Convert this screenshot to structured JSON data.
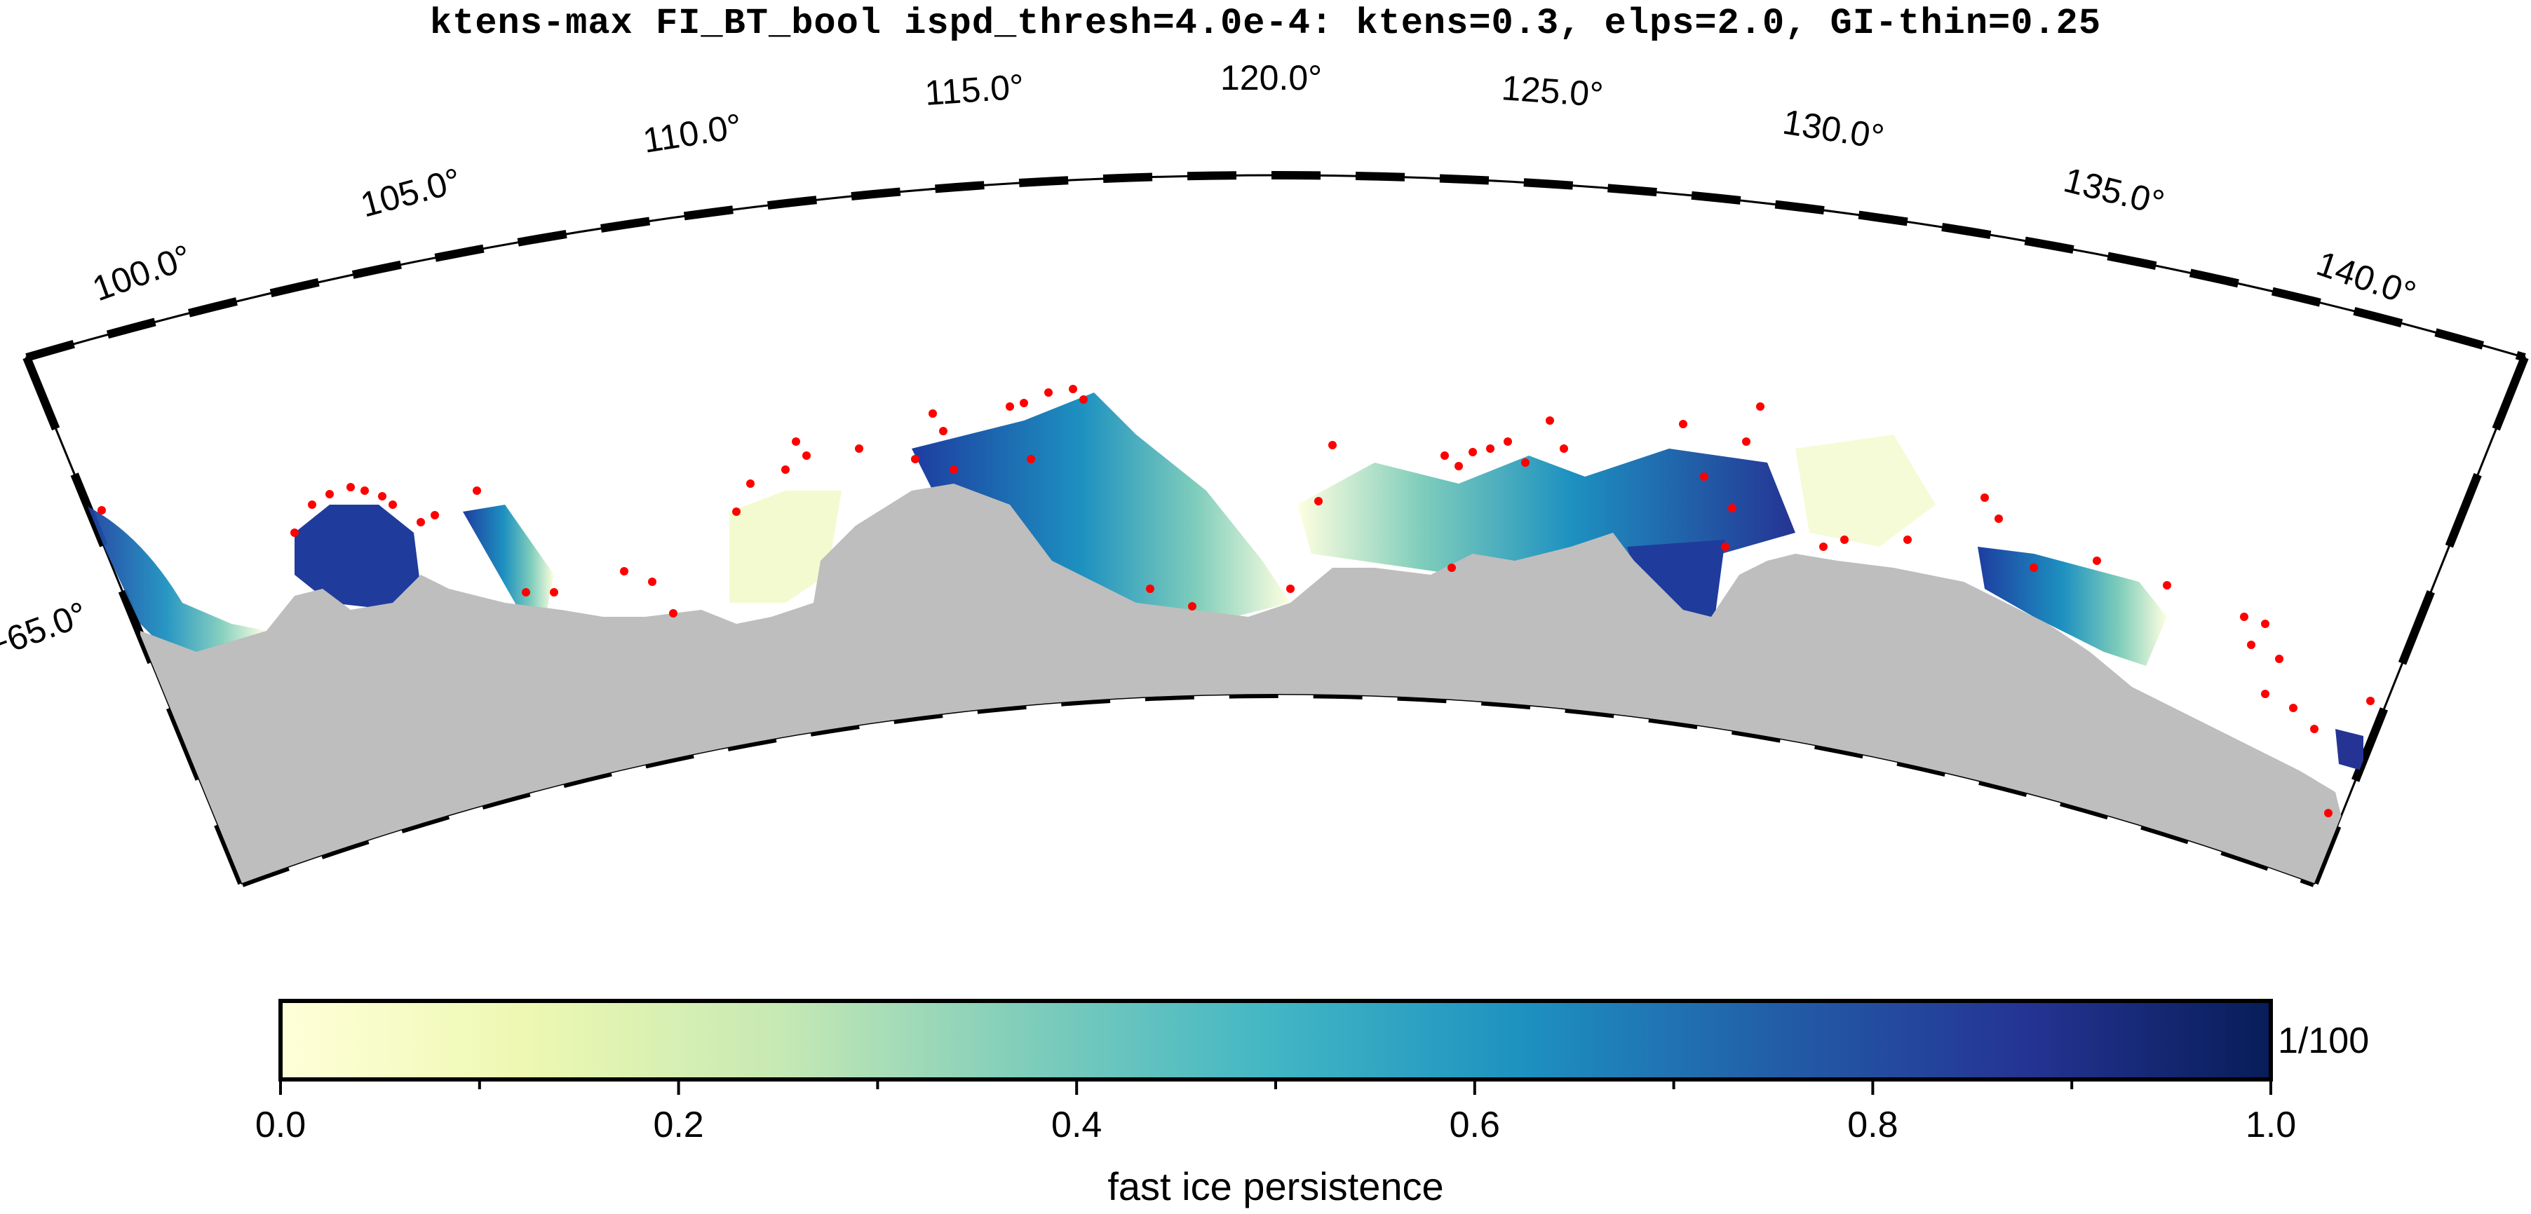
{
  "title": "ktens-max FI_BT_bool ispd_thresh=4.0e-4: ktens=0.3, elps=2.0, GI-thin=0.25",
  "map": {
    "projection": "polar sector (fan)",
    "longitude_labels": [
      "100.0°",
      "105.0°",
      "110.0°",
      "115.0°",
      "120.0°",
      "125.0°",
      "130.0°",
      "135.0°",
      "140.0°"
    ],
    "latitude_labels": [
      "−65.0°"
    ],
    "land_color": "#bebebe",
    "marker_color": "#ff0000",
    "marker_label": "grounded iceberg / point markers (red dots)"
  },
  "colorbar": {
    "label": "fast ice persistence",
    "unit_label": "1/100",
    "tick_labels": [
      "0.0",
      "0.2",
      "0.4",
      "0.6",
      "0.8",
      "1.0"
    ],
    "range": [
      0.0,
      1.0
    ],
    "colormap": "YlGnBu",
    "stops": [
      "#ffffd9",
      "#edf8b1",
      "#c7e9b4",
      "#7fcdbb",
      "#41b6c4",
      "#1d91c0",
      "#225ea8",
      "#253494",
      "#081d58"
    ]
  }
}
